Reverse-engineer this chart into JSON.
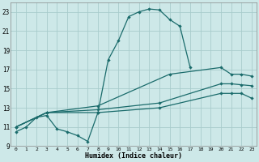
{
  "xlabel": "Humidex (Indice chaleur)",
  "xlim": [
    -0.5,
    23.5
  ],
  "ylim": [
    9,
    24
  ],
  "xticks": [
    0,
    1,
    2,
    3,
    4,
    5,
    6,
    7,
    8,
    9,
    10,
    11,
    12,
    13,
    14,
    15,
    16,
    17,
    18,
    19,
    20,
    21,
    22,
    23
  ],
  "yticks": [
    9,
    11,
    13,
    15,
    17,
    19,
    21,
    23
  ],
  "bg_color": "#cde8e8",
  "grid_color": "#a8cccc",
  "line_color": "#1a6b6b",
  "curve1_x": [
    0,
    1,
    2,
    3,
    4,
    5,
    6,
    7,
    8,
    9,
    10,
    11,
    12,
    13,
    14,
    15,
    16,
    17
  ],
  "curve1_y": [
    10.5,
    11.0,
    12.0,
    12.2,
    10.8,
    10.5,
    10.1,
    9.5,
    12.5,
    18.0,
    20.0,
    22.5,
    23.0,
    23.3,
    23.2,
    22.2,
    21.5,
    17.2
  ],
  "curve2_x": [
    0,
    3,
    8,
    14,
    20,
    21,
    22,
    23
  ],
  "curve2_y": [
    11.0,
    12.5,
    12.5,
    13.0,
    14.5,
    14.5,
    14.5,
    14.0
  ],
  "curve3_x": [
    0,
    3,
    8,
    14,
    20,
    21,
    22,
    23
  ],
  "curve3_y": [
    11.0,
    12.5,
    12.8,
    13.5,
    15.5,
    15.5,
    15.4,
    15.3
  ],
  "curve4_x": [
    0,
    3,
    8,
    15,
    20,
    21,
    22,
    23
  ],
  "curve4_y": [
    11.0,
    12.5,
    13.2,
    16.5,
    17.2,
    16.5,
    16.5,
    16.3
  ]
}
